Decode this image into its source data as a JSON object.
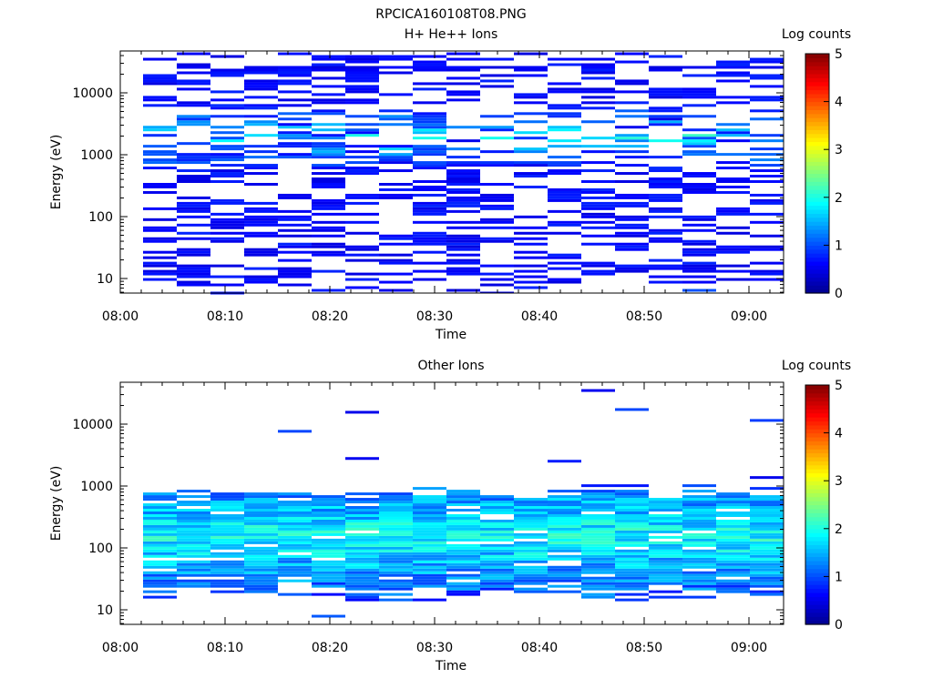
{
  "page": {
    "title": "RPCICA160108T08.PNG"
  },
  "colors": {
    "colormap": [
      "#00008f",
      "#0000ff",
      "#0080ff",
      "#00ffff",
      "#80ff80",
      "#ffff00",
      "#ff8000",
      "#ff0000",
      "#800000"
    ],
    "axis": "#000000",
    "background": "#ffffff"
  },
  "chart_data": [
    {
      "type": "heatmap",
      "title": "H+ He++ Ions",
      "xlabel": "Time",
      "ylabel": "Energy (eV)",
      "x_ticks": [
        "08:00",
        "08:10",
        "08:20",
        "08:30",
        "08:40",
        "08:50",
        "09:00"
      ],
      "y_ticks": [
        "10",
        "100",
        "1000",
        "10000"
      ],
      "y_scale": "log",
      "colorbar_label": "Log counts",
      "colorbar_ticks": [
        "0",
        "1",
        "2",
        "3",
        "4",
        "5"
      ],
      "colorbar_range": [
        0,
        5
      ],
      "seed": 17,
      "profile": {
        "min_energy": 7,
        "max_energy": 40000,
        "mode": "sparse",
        "base_value": 0.45,
        "peak_energy": 1800,
        "peak_value": 2.0
      }
    },
    {
      "type": "heatmap",
      "title": "Other Ions",
      "xlabel": "Time",
      "ylabel": "Energy (eV)",
      "x_ticks": [
        "08:00",
        "08:10",
        "08:20",
        "08:30",
        "08:40",
        "08:50",
        "09:00"
      ],
      "y_ticks": [
        "10",
        "100",
        "1000",
        "10000"
      ],
      "y_scale": "log",
      "colorbar_label": "Log counts",
      "colorbar_ticks": [
        "0",
        "1",
        "2",
        "3",
        "4",
        "5"
      ],
      "colorbar_range": [
        0,
        5
      ],
      "seed": 43,
      "profile": {
        "min_energy": 20,
        "max_energy": 700,
        "mode": "dense",
        "base_value": 1.9,
        "peak_energy": 150,
        "peak_value": 2.4
      }
    }
  ]
}
